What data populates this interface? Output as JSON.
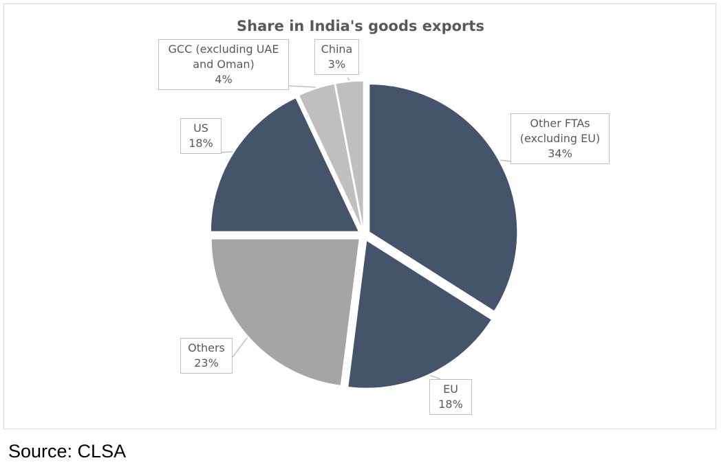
{
  "chart_data": {
    "type": "pie",
    "title": "Share in India's goods exports",
    "slices": [
      {
        "label": "Other FTAs (excluding EU)",
        "value": 34,
        "display": "34%",
        "color": "#44546A"
      },
      {
        "label": "EU",
        "value": 18,
        "display": "18%",
        "color": "#44546A"
      },
      {
        "label": "Others",
        "value": 23,
        "display": "23%",
        "color": "#A5A5A5"
      },
      {
        "label": "US",
        "value": 18,
        "display": "18%",
        "color": "#44546A"
      },
      {
        "label": "GCC (excluding UAE and Oman)",
        "value": 4,
        "display": "4%",
        "color": "#BFBFBF"
      },
      {
        "label": "China",
        "value": 3,
        "display": "3%",
        "color": "#BFBFBF"
      }
    ],
    "start_angle": "12 o'clock",
    "direction": "clockwise",
    "exploded": true,
    "legend": "none"
  },
  "source": "Source: CLSA"
}
